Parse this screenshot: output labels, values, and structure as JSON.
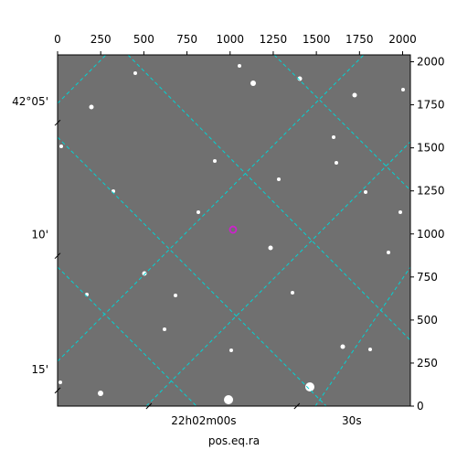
{
  "chart_data": {
    "type": "image",
    "xlabel": "pos.eq.ra",
    "xlim": [
      0,
      2045
    ],
    "ylim": [
      0,
      2040
    ],
    "xticks": [
      0,
      250,
      500,
      750,
      1000,
      1250,
      1500,
      1750,
      2000
    ],
    "yticks": [
      0,
      250,
      500,
      750,
      1000,
      1250,
      1500,
      1750,
      2000
    ],
    "dec_ticks": [
      {
        "value": 1768,
        "label": "42°05'"
      },
      {
        "value": 995,
        "label": "10'"
      },
      {
        "value": 213,
        "label": "15'"
      }
    ],
    "ra_ticks": [
      {
        "value": 847,
        "label": "22h02m00s"
      },
      {
        "value": 1705,
        "label": "30s"
      }
    ],
    "marker": {
      "x": 1017,
      "y": 1025,
      "color": "#cc22cc"
    }
  }
}
